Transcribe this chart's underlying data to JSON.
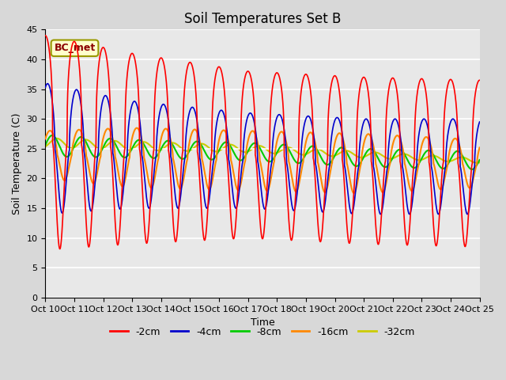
{
  "title": "Soil Temperatures Set B",
  "xlabel": "Time",
  "ylabel": "Soil Temperature (C)",
  "ylim": [
    0,
    45
  ],
  "xlim": [
    0,
    15
  ],
  "xtick_labels": [
    "Oct 10",
    "Oct 11",
    "Oct 12",
    "Oct 13",
    "Oct 14",
    "Oct 15",
    "Oct 16",
    "Oct 17",
    "Oct 18",
    "Oct 19",
    "Oct 20",
    "Oct 21",
    "Oct 22",
    "Oct 23",
    "Oct 24",
    "Oct 25"
  ],
  "legend_labels": [
    "-2cm",
    "-4cm",
    "-8cm",
    "-16cm",
    "-32cm"
  ],
  "legend_colors": [
    "#ff0000",
    "#0000cc",
    "#00cc00",
    "#ff8800",
    "#cccc00"
  ],
  "line_widths": [
    1.2,
    1.2,
    1.5,
    1.5,
    1.5
  ],
  "annotation_text": "BC_met",
  "plot_bg_color": "#e8e8e8",
  "title_fontsize": 12,
  "label_fontsize": 9,
  "tick_fontsize": 8
}
